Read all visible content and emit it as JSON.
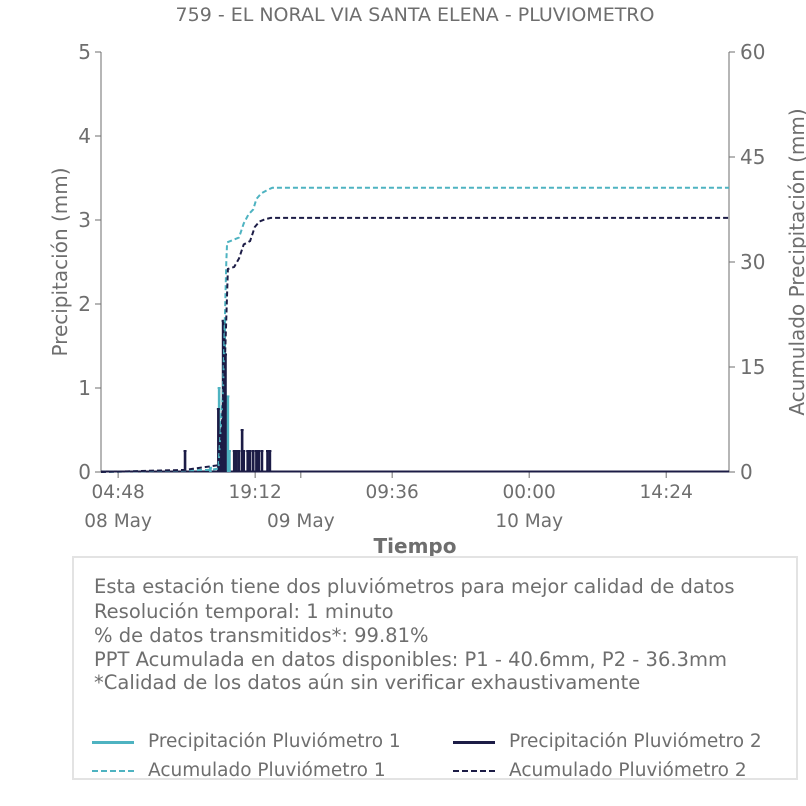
{
  "chart_data": {
    "type": "line",
    "title": "759 - EL NORAL VIA SANTA ELENA - PLUVIOMETRO",
    "xlabel": "Tiempo",
    "ylabel": "Precipitación (mm)",
    "y2label": "Acumulado Precipitación (mm)",
    "xlim": [
      "2024-05-08 03:00",
      "2024-05-10 21:00"
    ],
    "ylim": [
      0,
      5
    ],
    "y2lim": [
      0,
      60
    ],
    "yticks": [
      "0",
      "1",
      "2",
      "3",
      "4",
      "5"
    ],
    "y2ticks": [
      "0",
      "15",
      "30",
      "45",
      "60"
    ],
    "xticks": [
      {
        "time": "2024-05-08 04:48",
        "label": "04:48",
        "date_label": "08 May"
      },
      {
        "time": "2024-05-08 19:12",
        "label": "19:12",
        "date_label": ""
      },
      {
        "time": "2024-05-09 00:00",
        "label": "",
        "date_label": "09 May"
      },
      {
        "time": "2024-05-09 09:36",
        "label": "09:36",
        "date_label": ""
      },
      {
        "time": "2024-05-10 00:00",
        "label": "00:00",
        "date_label": "10 May"
      },
      {
        "time": "2024-05-10 14:24",
        "label": "14:24",
        "date_label": ""
      }
    ],
    "grid": false,
    "series": [
      {
        "name": "Precipitación Pluviómetro 1",
        "axis": "left",
        "style": "bars",
        "color": "#4eb3c1",
        "x": [
          "2024-05-08 14:30",
          "2024-05-08 15:25",
          "2024-05-08 15:45",
          "2024-05-08 16:00",
          "2024-05-08 16:20",
          "2024-05-08 16:30"
        ],
        "values": [
          0.05,
          1.0,
          0.55,
          1.8,
          0.9,
          0.25
        ]
      },
      {
        "name": "Precipitación Pluviómetro 2",
        "axis": "left",
        "style": "bars",
        "color": "#1c1c46",
        "x": [
          "2024-05-08 11:50",
          "2024-05-08 15:20",
          "2024-05-08 15:35",
          "2024-05-08 15:50",
          "2024-05-08 15:55",
          "2024-05-08 16:05",
          "2024-05-08 17:00",
          "2024-05-08 17:15",
          "2024-05-08 17:30",
          "2024-05-08 17:50",
          "2024-05-08 18:00",
          "2024-05-08 18:25",
          "2024-05-08 18:40",
          "2024-05-08 19:00",
          "2024-05-08 19:20",
          "2024-05-08 19:35",
          "2024-05-08 19:55",
          "2024-05-08 20:30",
          "2024-05-08 20:45"
        ],
        "values": [
          0.25,
          0.75,
          0.5,
          1.8,
          1.6,
          1.4,
          0.25,
          0.25,
          0.25,
          0.5,
          0.25,
          0.25,
          0.25,
          0.25,
          0.25,
          0.25,
          0.25,
          0.25,
          0.25
        ]
      },
      {
        "name": "Acumulado Pluviómetro 1",
        "axis": "right",
        "style": "dashed",
        "color": "#4eb3c1",
        "x": [
          "2024-05-08 03:00",
          "2024-05-08 14:30",
          "2024-05-08 15:20",
          "2024-05-08 15:50",
          "2024-05-08 16:10",
          "2024-05-08 16:15",
          "2024-05-08 17:30",
          "2024-05-08 18:00",
          "2024-05-08 18:30",
          "2024-05-08 19:00",
          "2024-05-08 19:20",
          "2024-05-08 19:50",
          "2024-05-08 20:30",
          "2024-05-08 21:00",
          "2024-05-10 21:00"
        ],
        "values": [
          0,
          0.3,
          0.5,
          12,
          30,
          32.8,
          33.5,
          35.5,
          36.8,
          37.5,
          39.0,
          39.8,
          40.3,
          40.6,
          40.6
        ]
      },
      {
        "name": "Acumulado Pluviómetro 2",
        "axis": "right",
        "style": "dashed",
        "color": "#1c1c46",
        "x": [
          "2024-05-08 03:00",
          "2024-05-08 11:50",
          "2024-05-08 15:30",
          "2024-05-08 16:00",
          "2024-05-08 16:20",
          "2024-05-08 17:00",
          "2024-05-08 17:30",
          "2024-05-08 18:00",
          "2024-05-08 18:40",
          "2024-05-08 19:10",
          "2024-05-08 19:40",
          "2024-05-08 20:15",
          "2024-05-08 20:50",
          "2024-05-10 21:00"
        ],
        "values": [
          0,
          0.3,
          1.0,
          15,
          29,
          29.3,
          30.5,
          32.5,
          33.0,
          35.0,
          35.8,
          36.1,
          36.3,
          36.3
        ]
      }
    ]
  },
  "info": {
    "lines": [
      "Esta estación tiene dos pluviómetros para mejor calidad de datos",
      "Resolución temporal: 1 minuto",
      "% de datos transmitidos*: 99.81%",
      "PPT Acumulada en datos disponibles: P1 - 40.6mm, P2 - 36.3mm",
      "*Calidad de los datos aún sin verificar exhaustivamente"
    ]
  },
  "legend": {
    "items": [
      {
        "label": "Precipitación Pluviómetro 1",
        "color": "#4eb3c1",
        "style": "solid"
      },
      {
        "label": "Precipitación Pluviómetro 2",
        "color": "#1c1c46",
        "style": "solid"
      },
      {
        "label": "Acumulado Pluviómetro 1",
        "color": "#4eb3c1",
        "style": "dashed"
      },
      {
        "label": "Acumulado Pluviómetro 2",
        "color": "#1c1c46",
        "style": "dashed"
      }
    ]
  }
}
